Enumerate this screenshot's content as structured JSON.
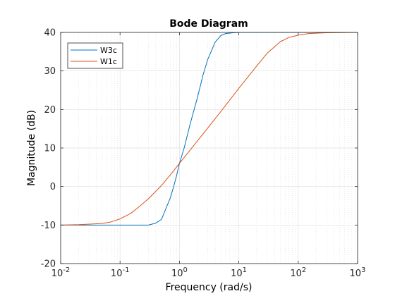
{
  "chart_data": {
    "type": "line",
    "title": "Bode Diagram",
    "xlabel": "Frequency  (rad/s)",
    "ylabel": "Magnitude (dB)",
    "x_scale": "log",
    "xlim": [
      0.01,
      1000
    ],
    "ylim": [
      -20,
      40
    ],
    "x_ticks": [
      {
        "value": 0.01,
        "base": "10",
        "exp": "-2"
      },
      {
        "value": 0.1,
        "base": "10",
        "exp": "-1"
      },
      {
        "value": 1,
        "base": "10",
        "exp": "0"
      },
      {
        "value": 10,
        "base": "10",
        "exp": "1"
      },
      {
        "value": 100,
        "base": "10",
        "exp": "2"
      },
      {
        "value": 1000,
        "base": "10",
        "exp": "3"
      }
    ],
    "y_ticks": [
      "-20",
      "-10",
      "0",
      "10",
      "20",
      "30",
      "40"
    ],
    "grid": true,
    "legend_position": "top-left",
    "series": [
      {
        "name": "W3c",
        "color": "#0072BD",
        "x": [
          0.01,
          0.02,
          0.05,
          0.1,
          0.2,
          0.3,
          0.4,
          0.5,
          0.6,
          0.7,
          0.8,
          0.9,
          1.0,
          1.2,
          1.5,
          2,
          2.5,
          3,
          4,
          5,
          6,
          8,
          10,
          100,
          1000
        ],
        "y": [
          -10,
          -10,
          -10,
          -10,
          -10,
          -10,
          -9.5,
          -8.5,
          -5.5,
          -3,
          0,
          3,
          6,
          10,
          16,
          23,
          29,
          33,
          37.5,
          39.2,
          39.7,
          39.9,
          40,
          40,
          40
        ]
      },
      {
        "name": "W1c",
        "color": "#D95319",
        "x": [
          0.01,
          0.02,
          0.05,
          0.07,
          0.1,
          0.15,
          0.2,
          0.3,
          0.5,
          0.7,
          1,
          2,
          3,
          5,
          10,
          20,
          30,
          50,
          70,
          100,
          150,
          200,
          300,
          1000
        ],
        "y": [
          -10,
          -9.9,
          -9.6,
          -9.2,
          -8.4,
          -7,
          -5.5,
          -3.2,
          0.3,
          3,
          6,
          11.8,
          15.2,
          19.5,
          25.5,
          31.3,
          34.6,
          37.6,
          38.7,
          39.3,
          39.7,
          39.8,
          39.9,
          40
        ]
      }
    ]
  }
}
